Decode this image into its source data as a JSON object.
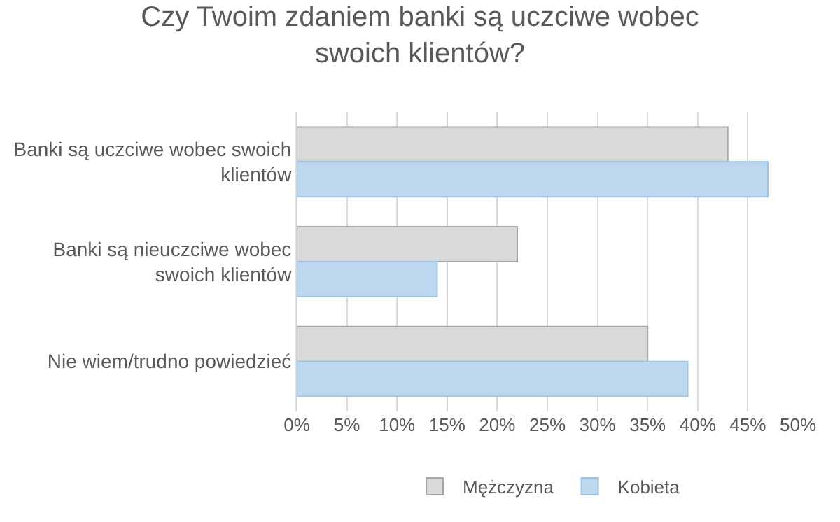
{
  "chart_data": {
    "type": "bar",
    "orientation": "horizontal",
    "title": "Czy Twoim zdaniem banki są uczciwe wobec swoich klientów?",
    "categories": [
      "Banki są uczciwe wobec swoich klientów",
      "Banki są nieuczciwe wobec swoich klientów",
      "Nie wiem/trudno powiedzieć"
    ],
    "series": [
      {
        "name": "Mężczyzna",
        "color": "#d9d9d9",
        "values": [
          43,
          22,
          35
        ]
      },
      {
        "name": "Kobieta",
        "color": "#bdd7ee",
        "values": [
          47,
          14,
          39
        ]
      }
    ],
    "xlim": [
      0,
      50
    ],
    "xticks": [
      {
        "value": 0,
        "label": "0%"
      },
      {
        "value": 5,
        "label": "5%"
      },
      {
        "value": 10,
        "label": "10%"
      },
      {
        "value": 15,
        "label": "15%"
      },
      {
        "value": 20,
        "label": "20%"
      },
      {
        "value": 25,
        "label": "25%"
      },
      {
        "value": 30,
        "label": "30%"
      },
      {
        "value": 35,
        "label": "35%"
      },
      {
        "value": 40,
        "label": "40%"
      },
      {
        "value": 45,
        "label": "45%"
      },
      {
        "value": 50,
        "label": "50%"
      }
    ],
    "grid": "x",
    "legend": "bottom"
  }
}
